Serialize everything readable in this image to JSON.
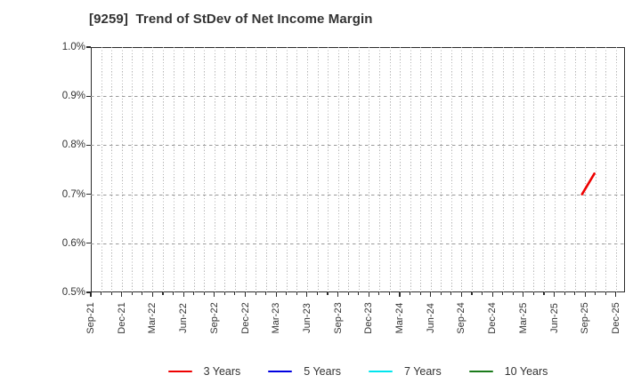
{
  "chart_data": {
    "type": "line",
    "title": "[9259]  Trend of StDev of Net Income Margin",
    "y_axis": {
      "min": 0.5,
      "max": 1.0,
      "unit": "%",
      "tick_values": [
        1.0,
        0.9,
        0.8,
        0.7,
        0.6,
        0.5
      ],
      "tick_labels": [
        "1.0%",
        "0.9%",
        "0.8%",
        "0.7%",
        "0.6%",
        "0.5%"
      ],
      "gridlines_at": [
        0.9,
        0.8,
        0.7,
        0.6
      ]
    },
    "x_axis": {
      "tick_labels": [
        "Sep-21",
        "Dec-21",
        "Mar-22",
        "Jun-22",
        "Sep-22",
        "Dec-22",
        "Mar-23",
        "Jun-23",
        "Sep-23",
        "Dec-23",
        "Mar-24",
        "Jun-24",
        "Sep-24",
        "Dec-24",
        "Mar-25",
        "Jun-25",
        "Sep-25",
        "Dec-25"
      ],
      "months_per_labeled_tick": 3,
      "minor_gridline_interval": "monthly",
      "total_month_span": 51.87,
      "grid_on": true
    },
    "series": [
      {
        "name": "3 Years",
        "color": "#ee0000",
        "points": [
          {
            "x_label": "Aug-25",
            "x_month": 47.7,
            "value_pct": 0.7
          },
          {
            "x_label": "Sep-25",
            "x_month": 48.9,
            "value_pct": 0.742
          }
        ]
      },
      {
        "name": "5 Years",
        "color": "#0000e0",
        "points": []
      },
      {
        "name": "7 Years",
        "color": "#00e5ee",
        "points": []
      },
      {
        "name": "10 Years",
        "color": "#1b7b1b",
        "points": []
      }
    ],
    "legend": {
      "position": "bottom",
      "entries": [
        "3 Years",
        "5 Years",
        "7 Years",
        "10 Years"
      ]
    },
    "colors": {
      "title_text": "#333333",
      "axis_frame": "#2b2b2b",
      "tick_label_text": "#333333",
      "vertical_grid": "#b4b4b4",
      "horizontal_grid": "#999999",
      "background": "#ffffff"
    }
  }
}
